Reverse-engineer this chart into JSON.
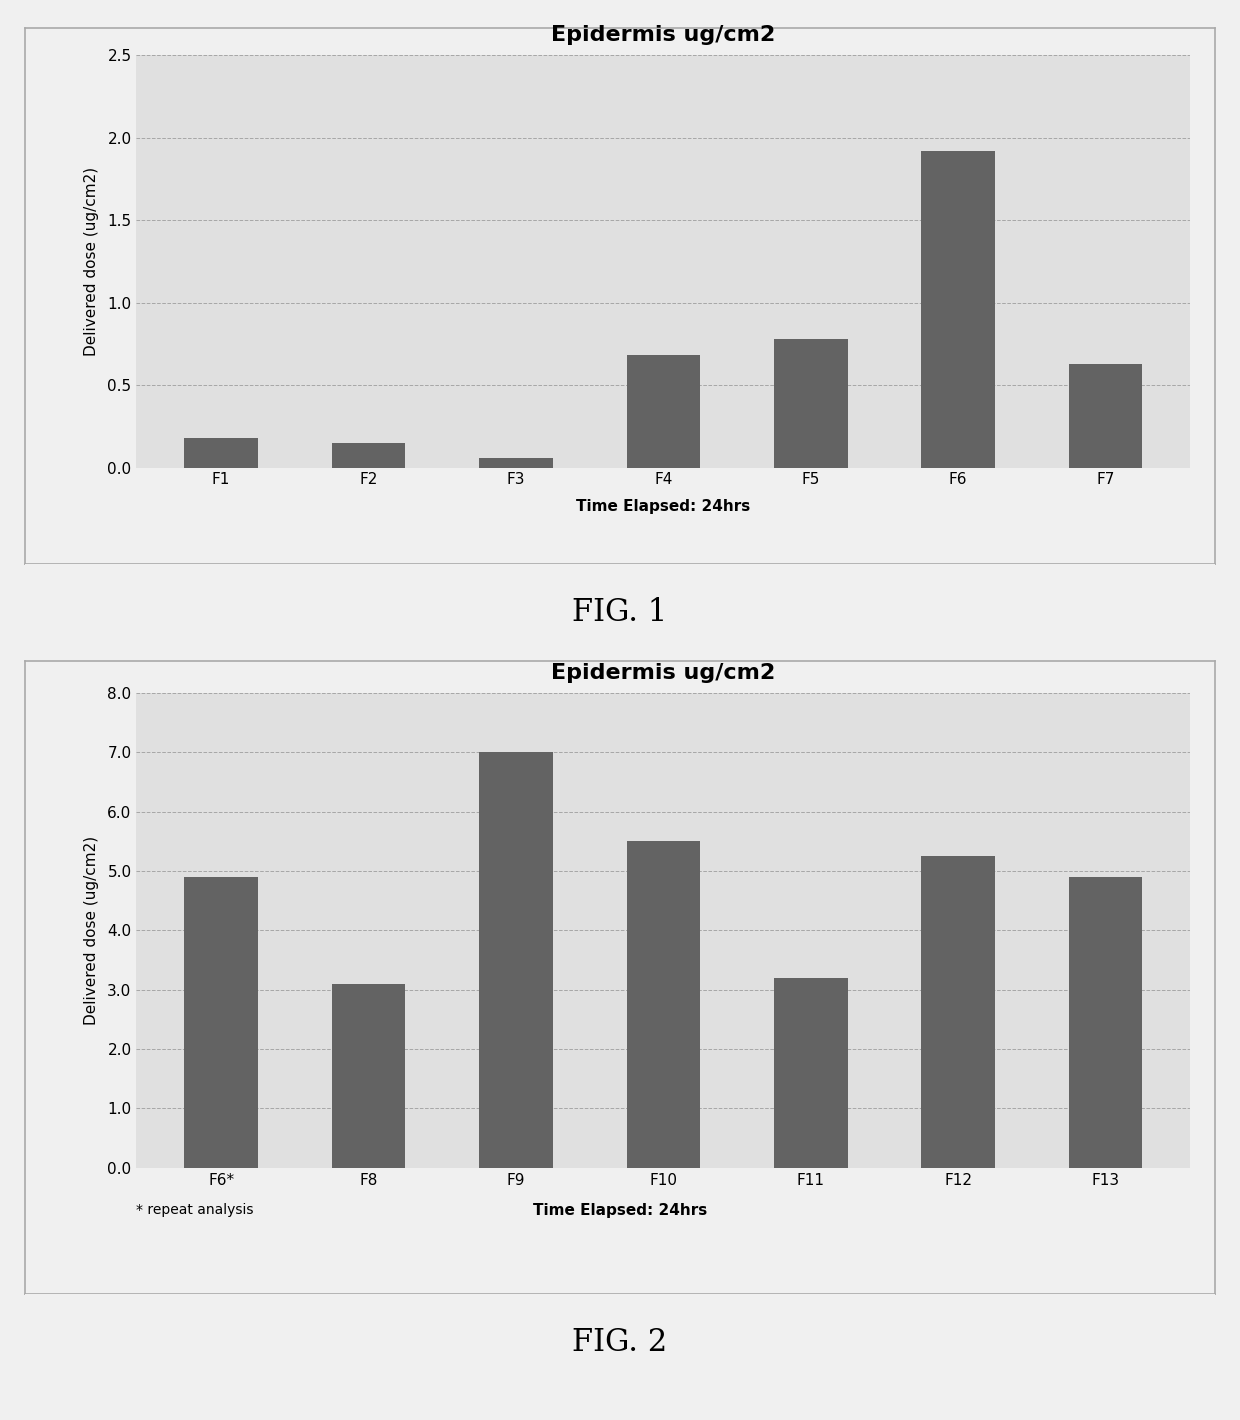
{
  "fig1": {
    "title": "Epidermis ug/cm2",
    "categories": [
      "F1",
      "F2",
      "F3",
      "F4",
      "F5",
      "F6",
      "F7"
    ],
    "values": [
      0.18,
      0.15,
      0.06,
      0.68,
      0.78,
      1.92,
      0.63
    ],
    "ylabel": "Delivered dose (ug/cm2)",
    "xlabel": "Time Elapsed: 24hrs",
    "ylim": [
      0,
      2.5
    ],
    "yticks": [
      0.0,
      0.5,
      1.0,
      1.5,
      2.0,
      2.5
    ],
    "bar_color": "#636363",
    "fig_label": "FIG. 1"
  },
  "fig2": {
    "title": "Epidermis ug/cm2",
    "categories": [
      "F6*",
      "F8",
      "F9",
      "F10",
      "F11",
      "F12",
      "F13"
    ],
    "values": [
      4.9,
      3.1,
      7.0,
      5.5,
      3.2,
      5.25,
      4.9
    ],
    "ylabel": "Delivered dose (ug/cm2)",
    "xlabel": "Time Elapsed: 24hrs",
    "xlabel_note": "* repeat analysis",
    "ylim": [
      0,
      8.0
    ],
    "yticks": [
      0.0,
      1.0,
      2.0,
      3.0,
      4.0,
      5.0,
      6.0,
      7.0,
      8.0
    ],
    "bar_color": "#636363",
    "fig_label": "FIG. 2"
  },
  "background_color": "#f0f0f0",
  "plot_bg_color": "#e0e0e0",
  "border_color": "#aaaaaa",
  "figure_size": [
    12.4,
    14.2
  ],
  "dpi": 100
}
